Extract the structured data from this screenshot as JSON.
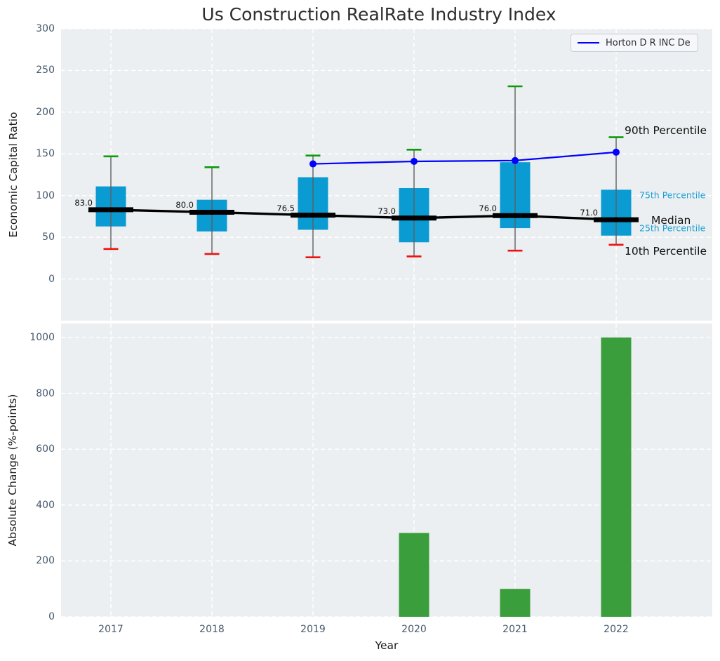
{
  "figure": {
    "title": "Us Construction RealRate Industry Index",
    "legend": {
      "label": "Horton D R INC De",
      "line_color": "#0000ff"
    }
  },
  "colors": {
    "box_fill": "#0a9bd2",
    "whisker": "#5e5e5e",
    "p90_cap": "#0a9c0a",
    "p10_cap": "#ee1111",
    "median_line": "#000000",
    "series_line": "#0000ff",
    "bar_fill": "#3b9e3d",
    "plot_background": "#eceff1",
    "grid": "#ffffff",
    "tick_text": "#47586c",
    "cyan_label": "#1a9fd6"
  },
  "chart_data": [
    {
      "type": "boxplot",
      "title": "Us Construction RealRate Industry Index",
      "ylabel": "Economic Capital Ratio",
      "ylim": [
        -50,
        300
      ],
      "yticks": [
        0,
        50,
        100,
        150,
        200,
        250,
        300
      ],
      "grid": "white dashed on",
      "legend_position": "upper right",
      "categories": [
        "2017",
        "2018",
        "2019",
        "2020",
        "2021",
        "2022"
      ],
      "boxes": [
        {
          "year": "2017",
          "p10": 36,
          "p25": 63,
          "median": 83.0,
          "p75": 111,
          "p90": 147,
          "label": "83.0"
        },
        {
          "year": "2018",
          "p10": 30,
          "p25": 57,
          "median": 80.0,
          "p75": 95,
          "p90": 134,
          "label": "80.0"
        },
        {
          "year": "2019",
          "p10": 26,
          "p25": 59,
          "median": 76.5,
          "p75": 122,
          "p90": 148,
          "label": "76.5"
        },
        {
          "year": "2020",
          "p10": 27,
          "p25": 44,
          "median": 73.0,
          "p75": 109,
          "p90": 155,
          "label": "73.0"
        },
        {
          "year": "2021",
          "p10": 34,
          "p25": 61,
          "median": 76.0,
          "p75": 140,
          "p90": 231,
          "label": "76.0"
        },
        {
          "year": "2022",
          "p10": 41,
          "p25": 52,
          "median": 71.0,
          "p75": 107,
          "p90": 170,
          "label": "71.0"
        }
      ],
      "series": [
        {
          "name": "Horton D R INC De",
          "color": "#0000ff",
          "points": [
            {
              "year": "2019",
              "value": 138
            },
            {
              "year": "2020",
              "value": 141
            },
            {
              "year": "2021",
              "value": 142
            },
            {
              "year": "2022",
              "value": 152
            }
          ]
        }
      ],
      "annotations": [
        {
          "text": "90th Percentile",
          "value": 178,
          "style": "large"
        },
        {
          "text": "75th Percentile",
          "value": 101,
          "style": "small"
        },
        {
          "text": "Median",
          "value": 70,
          "style": "large"
        },
        {
          "text": "25th Percentile",
          "value": 61,
          "style": "small"
        },
        {
          "text": "10th Percentile",
          "value": 33,
          "style": "large"
        }
      ]
    },
    {
      "type": "bar",
      "ylabel": "Absolute Change (%-points)",
      "xlabel": "Year",
      "ylim": [
        0,
        1050
      ],
      "yticks": [
        0,
        200,
        400,
        600,
        800,
        1000
      ],
      "grid": "white dashed on",
      "categories": [
        "2017",
        "2018",
        "2019",
        "2020",
        "2021",
        "2022"
      ],
      "values": [
        0,
        0,
        0,
        300,
        100,
        1000
      ]
    }
  ]
}
